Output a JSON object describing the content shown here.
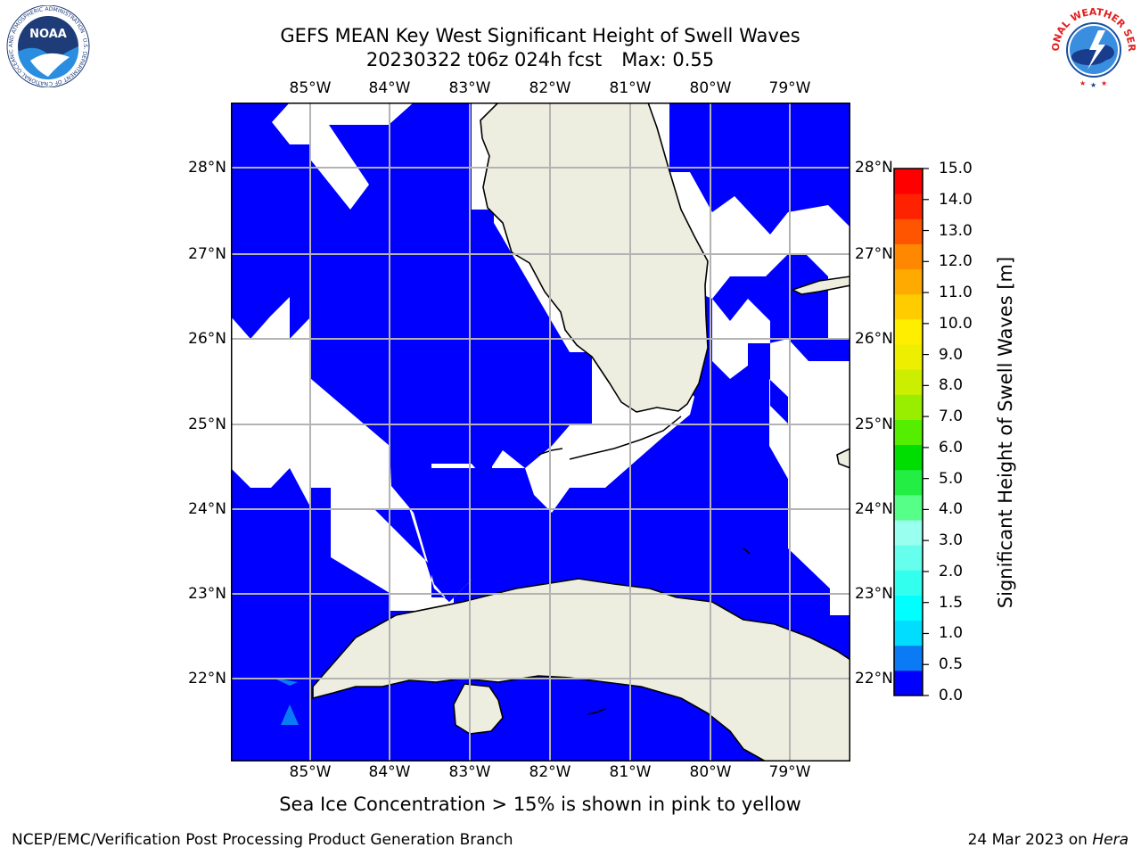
{
  "header": {
    "title_line1": "GEFS MEAN Key West Significant Height of Swell Waves",
    "cycle": "20230322 t06z 024h fcst",
    "max_label": "Max: 0.55"
  },
  "map": {
    "lon_labels": [
      "85°W",
      "84°W",
      "83°W",
      "82°W",
      "81°W",
      "80°W",
      "79°W"
    ],
    "lat_labels": [
      "28°N",
      "27°N",
      "26°N",
      "25°N",
      "24°N",
      "23°N",
      "22°N"
    ],
    "extent": {
      "lon_min": -86.0,
      "lon_max": -78.25,
      "lat_min": 21.0,
      "lat_max": 28.75
    },
    "colors": {
      "water_low": "#0000ff",
      "water_mid": "#0a7af5",
      "land": "#eeeee0",
      "grid": "#b3b3b3"
    }
  },
  "colorbar": {
    "label": "Significant Height of Swell Waves [m]",
    "ticks": [
      "15.0",
      "14.0",
      "13.0",
      "12.0",
      "11.0",
      "10.0",
      "9.0",
      "8.0",
      "7.0",
      "6.0",
      "5.0",
      "4.0",
      "3.0",
      "2.0",
      "1.5",
      "1.0",
      "0.5",
      "0.0"
    ],
    "colors": [
      "#0000ff",
      "#0a7af5",
      "#00ddff",
      "#00ffff",
      "#33ffee",
      "#66ffee",
      "#99ffee",
      "#55ff88",
      "#22ee44",
      "#00dd00",
      "#55ee00",
      "#99ee00",
      "#ccee00",
      "#eeee00",
      "#ffee00",
      "#ffcc00",
      "#ffaa00",
      "#ff8800",
      "#ff5500",
      "#ff2200",
      "#ff0000"
    ]
  },
  "footer": {
    "sea_ice_note": "Sea Ice Concentration > 15% is shown in pink to yellow",
    "credit": "NCEP/EMC/Verification Post Processing Product Generation Branch",
    "date_text": "24 Mar 2023 on",
    "host": "Hera"
  },
  "logos": {
    "left_text": "NOAA",
    "left_ring": "NATIONAL OCEANIC AND ATMOSPHERIC ADMINISTRATION · U.S. DEPARTMENT OF COMMERCE",
    "right_ring": "NATIONAL WEATHER SERVICE"
  }
}
